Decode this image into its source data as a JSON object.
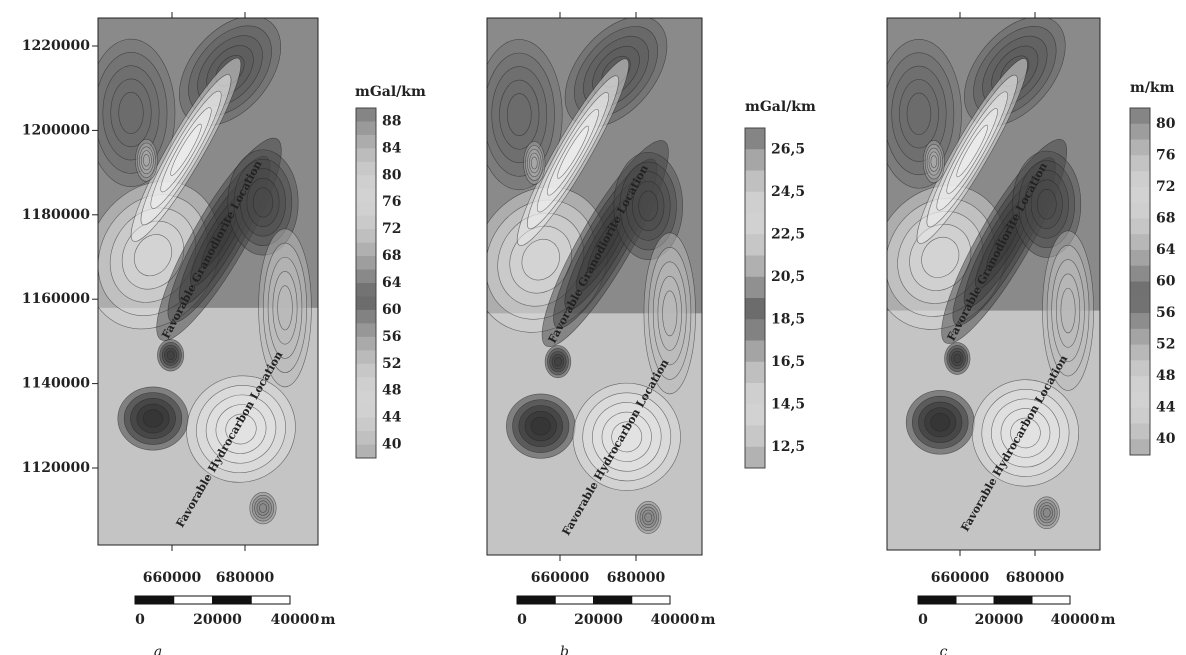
{
  "y_axis_ticks": [
    "1220000",
    "1200000",
    "1180000",
    "1160000",
    "1140000",
    "1120000"
  ],
  "panels": [
    {
      "label": "a",
      "x_ticks": [
        "660000",
        "680000"
      ],
      "colorbar": {
        "unit": "mGal/km",
        "labels": [
          "88",
          "84",
          "80",
          "76",
          "72",
          "68",
          "64",
          "60",
          "56",
          "52",
          "48",
          "44",
          "40"
        ]
      },
      "scale_bar": {
        "labels": [
          "0",
          "20000",
          "40000"
        ],
        "unit": "m"
      },
      "annotations": [
        "Favorable Granodiorite Location",
        "Favorable Hydrocarbon Location"
      ]
    },
    {
      "label": "b",
      "x_ticks": [
        "660000",
        "680000"
      ],
      "colorbar": {
        "unit": "mGal/km",
        "labels": [
          "26,5",
          "24,5",
          "22,5",
          "20,5",
          "18,5",
          "16,5",
          "14,5",
          "12,5"
        ]
      },
      "scale_bar": {
        "labels": [
          "0",
          "20000",
          "40000"
        ],
        "unit": "m"
      },
      "annotations": [
        "Favorable Granodiorite Location",
        "Favorable Hydrocarbon Location"
      ]
    },
    {
      "label": "c",
      "x_ticks": [
        "660000",
        "680000"
      ],
      "colorbar": {
        "unit": "m/km",
        "labels": [
          "80",
          "76",
          "72",
          "68",
          "64",
          "60",
          "56",
          "52",
          "48",
          "44",
          "40"
        ]
      },
      "scale_bar": {
        "labels": [
          "0",
          "20000",
          "40000"
        ],
        "unit": "m"
      },
      "annotations": [
        "Favorable Granodiorite Location",
        "Favorable Hydrocarbon Location"
      ]
    }
  ]
}
